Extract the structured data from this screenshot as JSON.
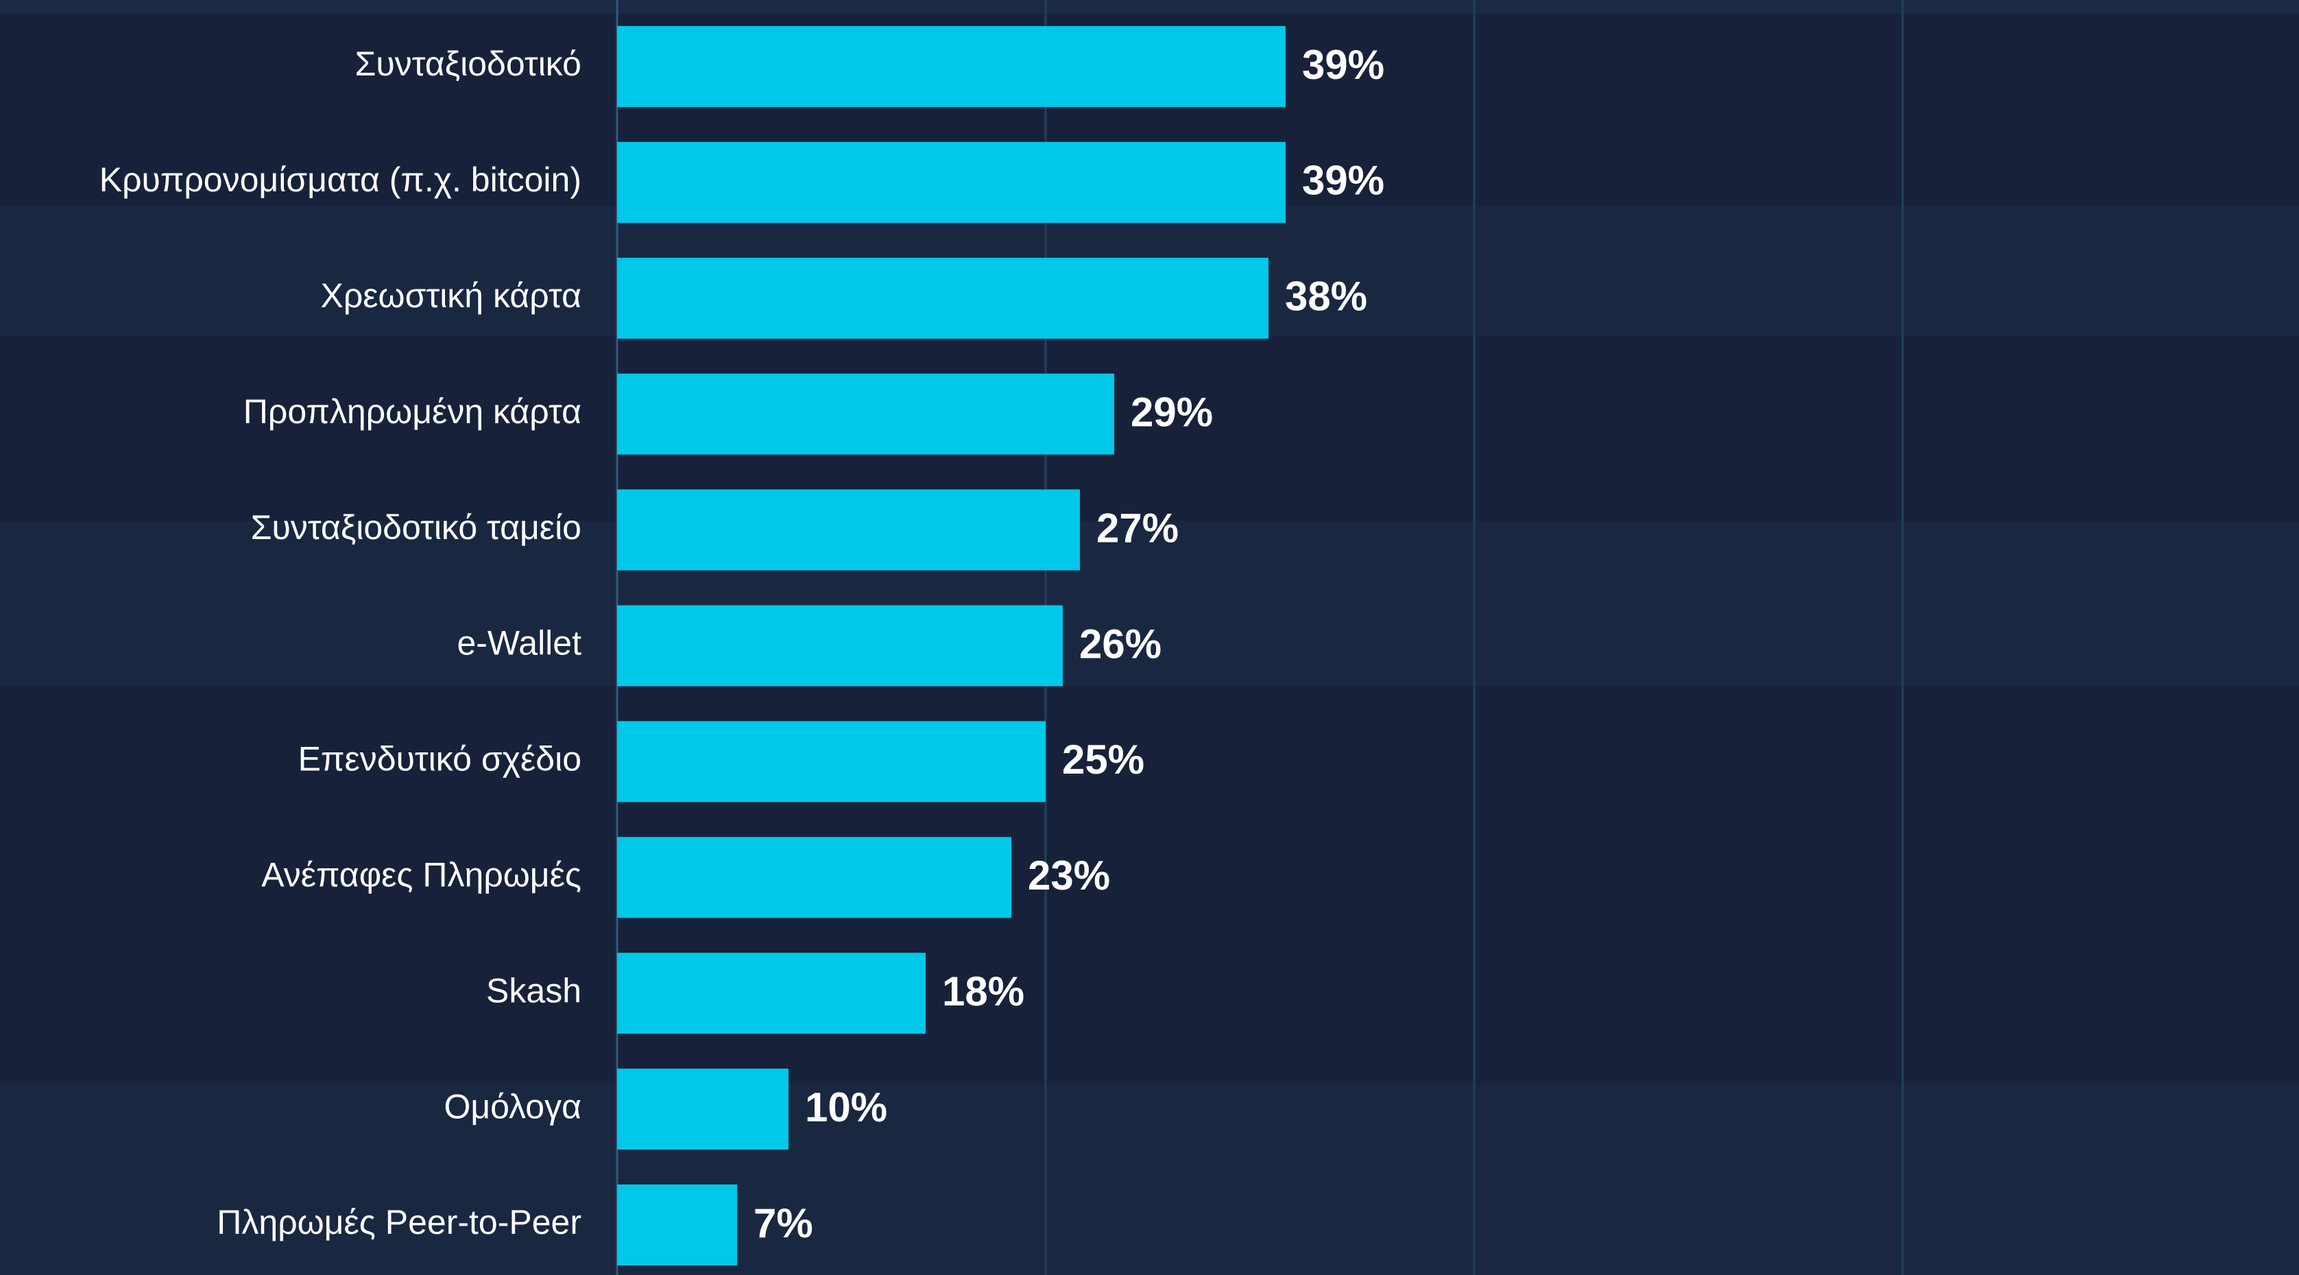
{
  "chart_data": {
    "type": "bar",
    "orientation": "horizontal",
    "categories": [
      "Συνταξιοδοτικό",
      "Κρυπρονομίσματα (π.χ. bitcoin)",
      "Χρεωστική κάρτα",
      "Προπληρωμένη κάρτα",
      "Συνταξιοδοτικό ταμείο",
      "e-Wallet",
      "Επενδυτικό σχέδιο",
      "Ανέπαφες Πληρωμές",
      "Skash",
      "Ομόλογα",
      "Πληρωμές Peer-to-Peer"
    ],
    "values": [
      39,
      39,
      38,
      29,
      27,
      26,
      25,
      23,
      18,
      10,
      7
    ],
    "value_labels": [
      "39%",
      "39%",
      "38%",
      "29%",
      "27%",
      "26%",
      "25%",
      "23%",
      "18%",
      "10%",
      "7%"
    ],
    "color": "#00c8e9",
    "xlim": [
      0,
      100
    ],
    "xticks": [
      0,
      25,
      50,
      75
    ],
    "grid": true
  }
}
